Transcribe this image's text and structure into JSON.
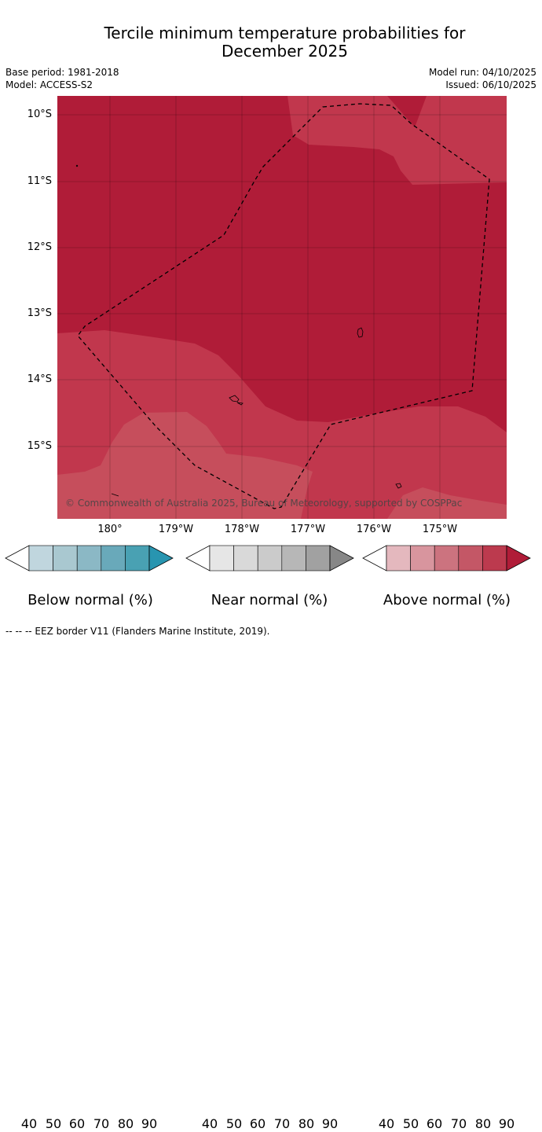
{
  "title": {
    "line1": "Tercile minimum temperature probabilities for",
    "line2": "December 2025"
  },
  "meta": {
    "base_period": "Base period: 1981-2018",
    "model": "Model: ACCESS-S2",
    "model_run": "Model run: 04/10/2025",
    "issued": "Issued: 06/10/2025"
  },
  "map": {
    "lat_labels": [
      "10°S",
      "11°S",
      "12°S",
      "13°S",
      "14°S",
      "15°S"
    ],
    "lon_labels": [
      "180°",
      "179°W",
      "178°W",
      "177°W",
      "176°W",
      "175°W"
    ],
    "copyright": "© Commonwealth of Australia 2025, Bureau of Meteorology, supported by COSPPac",
    "colors": {
      "above_90": "#b01c38",
      "above_80": "#c1374d",
      "above_70": "#c64e5c",
      "coast": "#000000",
      "eez": "#000000"
    }
  },
  "colorbars": [
    {
      "title": "Below normal (%)",
      "ticks": [
        "40",
        "50",
        "60",
        "70",
        "80",
        "90"
      ],
      "colors": [
        "#ffffff",
        "#c0d6de",
        "#a9c8d0",
        "#8bb8c5",
        "#69a9ba",
        "#49a1b3",
        "#2895b0"
      ]
    },
    {
      "title": "Near normal (%)",
      "ticks": [
        "40",
        "50",
        "60",
        "70",
        "80",
        "90"
      ],
      "colors": [
        "#ffffff",
        "#e6e6e6",
        "#d9d9d9",
        "#cbcbcb",
        "#b7b7b7",
        "#a1a1a1",
        "#878787"
      ]
    },
    {
      "title": "Above normal (%)",
      "ticks": [
        "40",
        "50",
        "60",
        "70",
        "80",
        "90"
      ],
      "colors": [
        "#ffffff",
        "#e4b8be",
        "#d8959e",
        "#cc737f",
        "#c45766",
        "#bc3a4e",
        "#b01c38"
      ]
    }
  ],
  "footer": "-- -- -- EEZ border V11 (Flanders Marine Institute, 2019)."
}
